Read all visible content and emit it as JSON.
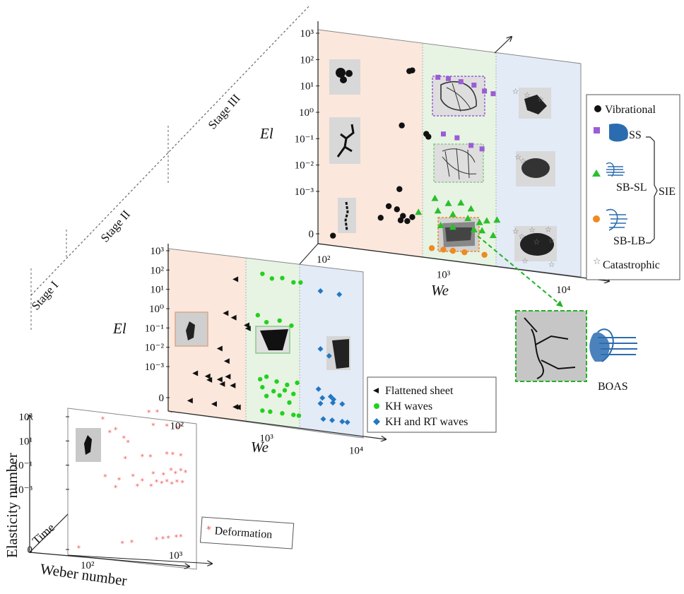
{
  "stages": [
    "Stage I",
    "Stage II",
    "Stage III"
  ],
  "axes": {
    "elasticity_number": "Elasticity number",
    "weber_number": "Weber number",
    "time": "Time",
    "el": "El",
    "we": "We"
  },
  "ticks": {
    "stage1_y": [
      "10³",
      "10¹",
      "10⁻¹",
      "10⁻³",
      "0"
    ],
    "stage1_x": [
      "10²",
      "10³"
    ],
    "y_full": [
      "10³",
      "10²",
      "10¹",
      "10⁰",
      "10⁻¹",
      "10⁻²",
      "10⁻³",
      "0"
    ],
    "x_full": [
      "10²",
      "10³",
      "10⁴"
    ]
  },
  "legends": {
    "stage1": [
      "Deformation"
    ],
    "stage2": [
      "Flattened sheet",
      "KH waves",
      "KH and RT waves"
    ],
    "stage3": [
      "Vibrational",
      "SS",
      "SB-SL",
      "SB-LB",
      "Catastrophic"
    ],
    "sie": "SIE",
    "boas": "BOAS"
  },
  "colors": {
    "stage1_bg": "#ffffff",
    "region_peach": "#fbe7dc",
    "region_green": "#e7f4e3",
    "region_blue": "#e3ebf7",
    "deformation": "#ee5a5a",
    "flattened": "#111111",
    "kh": "#22d11f",
    "khrt": "#2178c4",
    "vibrational": "#111111",
    "ss": "#9b5cd6",
    "sbsl": "#2bbf2b",
    "sblb": "#ee8a22",
    "catastrophic": "#888888"
  },
  "chart_data": [
    {
      "type": "scatter",
      "xlabel": "Weber number",
      "ylabel": "Elasticity number",
      "x_scale": "log",
      "y_scale": "symlog (0 plus log decades)",
      "x_ticks": [
        "10²",
        "10³"
      ],
      "y_ticks": [
        "10³",
        "10¹",
        "10⁻¹",
        "10⁻³",
        "0"
      ],
      "series": [
        {
          "name": "Deformation",
          "marker": "asterisk",
          "points": [
            [
              150,
              300
            ],
            [
              210,
              30
            ],
            [
              290,
              2
            ],
            [
              500,
              400
            ],
            [
              620,
              350
            ],
            [
              900,
              250
            ],
            [
              1100,
              200
            ],
            [
              180,
              20
            ],
            [
              260,
              5
            ],
            [
              560,
              30
            ],
            [
              800,
              20
            ],
            [
              1050,
              10
            ],
            [
              1150,
              15
            ],
            [
              270,
              0.1
            ],
            [
              420,
              0.1
            ],
            [
              520,
              0.08
            ],
            [
              800,
              0.1
            ],
            [
              930,
              0.08
            ],
            [
              1150,
              0.05
            ],
            [
              160,
              0.005
            ],
            [
              230,
              0.002
            ],
            [
              330,
              0.003
            ],
            [
              420,
              0.001
            ],
            [
              560,
              0.003
            ],
            [
              730,
              0.002
            ],
            [
              890,
              0.004
            ],
            [
              1000,
              0.002
            ],
            [
              1150,
              0.003
            ],
            [
              1300,
              0.002
            ],
            [
              210,
              0.0005
            ],
            [
              370,
              0.0004
            ],
            [
              530,
              0.0003
            ],
            [
              610,
              0.0006
            ],
            [
              700,
              0.0004
            ],
            [
              800,
              0.0005
            ],
            [
              910,
              0.0003
            ],
            [
              1040,
              0.0004
            ],
            [
              1200,
              0.0003
            ],
            [
              80,
              0
            ],
            [
              250,
              0
            ],
            [
              320,
              0
            ],
            [
              610,
              0
            ],
            [
              720,
              0
            ],
            [
              830,
              0
            ],
            [
              1020,
              0
            ],
            [
              1150,
              0
            ]
          ]
        }
      ]
    },
    {
      "type": "scatter",
      "xlabel": "We",
      "ylabel": "El",
      "x_scale": "log",
      "y_scale": "symlog (0 plus log decades)",
      "x_ticks": [
        "10²",
        "10³",
        "10⁴"
      ],
      "y_ticks": [
        "10³",
        "10²",
        "10¹",
        "10⁰",
        "10⁻¹",
        "10⁻²",
        "10⁻³",
        "0"
      ],
      "series": [
        {
          "name": "Flattened sheet",
          "marker": "left-triangle",
          "points": [
            [
              450,
              100
            ],
            [
              350,
              1.5
            ],
            [
              430,
              1
            ],
            [
              600,
              0.5
            ],
            [
              620,
              0.35
            ],
            [
              300,
              0.02
            ],
            [
              360,
              0.005
            ],
            [
              160,
              0.0007
            ],
            [
              220,
              0.0006
            ],
            [
              300,
              0.0005
            ],
            [
              370,
              0.0008
            ],
            [
              230,
              0.0004
            ],
            [
              320,
              0.0003
            ],
            [
              420,
              0.0003
            ],
            [
              140,
              0
            ],
            [
              260,
              0
            ],
            [
              450,
              0
            ],
            [
              480,
              0
            ]
          ]
        },
        {
          "name": "KH waves",
          "marker": "circle",
          "points": [
            [
              900,
              300
            ],
            [
              1150,
              200
            ],
            [
              1500,
              250
            ],
            [
              2000,
              180
            ],
            [
              2400,
              200
            ],
            [
              800,
              2
            ],
            [
              1000,
              1
            ],
            [
              1400,
              1.5
            ],
            [
              1900,
              1
            ],
            [
              850,
              0.001
            ],
            [
              1000,
              0.0015
            ],
            [
              1300,
              0.001
            ],
            [
              1700,
              0.0008
            ],
            [
              2200,
              0.0012
            ],
            [
              900,
              0.0004
            ],
            [
              1200,
              0.0003
            ],
            [
              1600,
              0.0004
            ],
            [
              2000,
              0.0003
            ],
            [
              1000,
              0.00015
            ],
            [
              1400,
              0.0002
            ],
            [
              1800,
              0.0001
            ],
            [
              900,
              0
            ],
            [
              1100,
              0
            ],
            [
              1500,
              0
            ],
            [
              2000,
              0
            ],
            [
              2300,
              0
            ]
          ]
        },
        {
          "name": "KH and RT waves",
          "marker": "diamond",
          "points": [
            [
              4000,
              100
            ],
            [
              6500,
              90
            ],
            [
              4000,
              0.1
            ],
            [
              5000,
              0.05
            ],
            [
              3800,
              0.0008
            ],
            [
              5200,
              0.0004
            ],
            [
              4200,
              0.0003
            ],
            [
              5600,
              0.0003
            ],
            [
              4000,
              0.00015
            ],
            [
              5500,
              0.0002
            ],
            [
              7000,
              0.0002
            ],
            [
              4300,
              0
            ],
            [
              5400,
              0
            ],
            [
              7000,
              0
            ],
            [
              8000,
              0
            ]
          ]
        }
      ]
    },
    {
      "type": "scatter",
      "xlabel": "We",
      "ylabel": "El",
      "x_scale": "log",
      "y_scale": "symlog (0 plus log decades)",
      "x_ticks": [
        "10²",
        "10³",
        "10⁴"
      ],
      "y_ticks": [
        "10³",
        "10²",
        "10¹",
        "10⁰",
        "10⁻¹",
        "10⁻²",
        "10⁻³",
        "0"
      ],
      "series": [
        {
          "name": "Vibrational",
          "marker": "circle",
          "points": [
            [
              520,
              100
            ],
            [
              550,
              110
            ],
            [
              450,
              0.8
            ],
            [
              720,
              0.5
            ],
            [
              750,
              0.4
            ],
            [
              430,
              0.003
            ],
            [
              350,
              0.0006
            ],
            [
              410,
              0.0005
            ],
            [
              460,
              0.0003
            ],
            [
              500,
              0.0002
            ],
            [
              300,
              0.0002
            ],
            [
              550,
              0.0003
            ],
            [
              440,
              0.0002
            ],
            [
              120,
              0
            ]
          ]
        },
        {
          "name": "SS",
          "marker": "square",
          "points": [
            [
              900,
              80
            ],
            [
              1100,
              80
            ],
            [
              1400,
              70
            ],
            [
              1800,
              60
            ],
            [
              2200,
              40
            ],
            [
              2600,
              35
            ],
            [
              1000,
              0.6
            ],
            [
              1300,
              0.5
            ],
            [
              1700,
              0.3
            ],
            [
              2100,
              0.25
            ]
          ]
        },
        {
          "name": "SB-SL",
          "marker": "triangle",
          "points": [
            [
              850,
              0.002
            ],
            [
              1100,
              0.0015
            ],
            [
              1400,
              0.0018
            ],
            [
              1700,
              0.0012
            ],
            [
              900,
              0.0007
            ],
            [
              1200,
              0.0006
            ],
            [
              1600,
              0.0005
            ],
            [
              2000,
              0.0004
            ],
            [
              2300,
              0.0005
            ],
            [
              950,
              0.0002
            ],
            [
              1200,
              0.0002
            ],
            [
              1800,
              0.0002
            ],
            [
              2100,
              0.0002
            ],
            [
              2600,
              0.00015
            ],
            [
              620,
              0.0005
            ],
            [
              2800,
              0.0006
            ]
          ]
        },
        {
          "name": "SB-LB",
          "marker": "circle",
          "points": [
            [
              800,
              0
            ],
            [
              1000,
              0
            ],
            [
              1200,
              0
            ],
            [
              1500,
              0
            ],
            [
              2200,
              0
            ]
          ]
        },
        {
          "name": "Catastrophic",
          "marker": "star",
          "points": [
            [
              4000,
              60
            ],
            [
              5000,
              50
            ],
            [
              6500,
              40
            ],
            [
              4200,
              0.2
            ],
            [
              4600,
              0.15
            ],
            [
              4000,
              0.0003
            ],
            [
              5500,
              0.0004
            ],
            [
              7500,
              0.0005
            ],
            [
              4500,
              0.0002
            ],
            [
              6000,
              0.00015
            ],
            [
              8000,
              0.0002
            ],
            [
              4800,
              0
            ],
            [
              8000,
              0
            ]
          ]
        }
      ]
    }
  ]
}
